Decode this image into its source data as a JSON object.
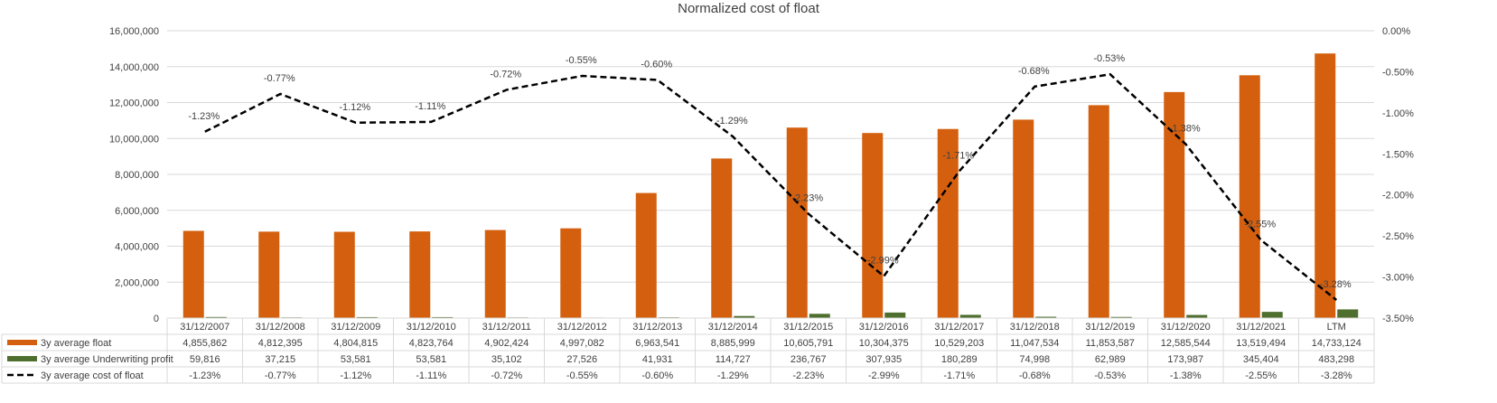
{
  "chart_data": {
    "type": "bar",
    "title": "Normalized cost of float",
    "categories": [
      "31/12/2007",
      "31/12/2008",
      "31/12/2009",
      "31/12/2010",
      "31/12/2011",
      "31/12/2012",
      "31/12/2013",
      "31/12/2014",
      "31/12/2015",
      "31/12/2016",
      "31/12/2017",
      "31/12/2018",
      "31/12/2019",
      "31/12/2020",
      "31/12/2021",
      "LTM"
    ],
    "series": [
      {
        "name": "3y average float",
        "type": "bar",
        "axis": "left",
        "color": "#D4600F",
        "values": [
          4855862,
          4812395,
          4804815,
          4823764,
          4902424,
          4997082,
          6963541,
          8885999,
          10605791,
          10304375,
          10529203,
          11047534,
          11853587,
          12585544,
          13519494,
          14733124
        ],
        "labels": [
          "4,855,862",
          "4,812,395",
          "4,804,815",
          "4,823,764",
          "4,902,424",
          "4,997,082",
          "6,963,541",
          "8,885,999",
          "10,605,791",
          "10,304,375",
          "10,529,203",
          "11,047,534",
          "11,853,587",
          "12,585,544",
          "13,519,494",
          "14,733,124"
        ]
      },
      {
        "name": "3y average Underwriting profit",
        "type": "bar",
        "axis": "left",
        "color": "#4F6F2F",
        "values": [
          59816,
          37215,
          53581,
          53581,
          35102,
          27526,
          41931,
          114727,
          236767,
          307935,
          180289,
          74998,
          62989,
          173987,
          345404,
          483298
        ],
        "labels": [
          "59,816",
          "37,215",
          "53,581",
          "53,581",
          "35,102",
          "27,526",
          "41,931",
          "114,727",
          "236,767",
          "307,935",
          "180,289",
          "74,998",
          "62,989",
          "173,987",
          "345,404",
          "483,298"
        ]
      },
      {
        "name": "3y average cost of float",
        "type": "line",
        "axis": "right",
        "color": "#000000",
        "values": [
          -1.23,
          -0.77,
          -1.12,
          -1.11,
          -0.72,
          -0.55,
          -0.6,
          -1.29,
          -2.23,
          -2.99,
          -1.71,
          -0.68,
          -0.53,
          -1.38,
          -2.55,
          -3.28
        ],
        "labels": [
          "-1.23%",
          "-0.77%",
          "-1.12%",
          "-1.11%",
          "-0.72%",
          "-0.55%",
          "-0.60%",
          "-1.29%",
          "-2.23%",
          "-2.99%",
          "-1.71%",
          "-0.68%",
          "-0.53%",
          "-1.38%",
          "-2.55%",
          "-3.28%"
        ]
      }
    ],
    "y_left": {
      "range": [
        0,
        16000000
      ],
      "ticks": [
        0,
        2000000,
        4000000,
        6000000,
        8000000,
        10000000,
        12000000,
        14000000,
        16000000
      ],
      "tick_labels": [
        "0",
        "2,000,000",
        "4,000,000",
        "6,000,000",
        "8,000,000",
        "10,000,000",
        "12,000,000",
        "14,000,000",
        "16,000,000"
      ]
    },
    "y_right": {
      "range": [
        -3.5,
        0
      ],
      "ticks": [
        0,
        -0.5,
        -1,
        -1.5,
        -2,
        -2.5,
        -3,
        -3.5
      ],
      "tick_labels": [
        "0.00%",
        "-0.50%",
        "-1.00%",
        "-1.50%",
        "-2.00%",
        "-2.50%",
        "-3.00%",
        "-3.50%"
      ]
    },
    "grid": true,
    "legend": "data-table"
  }
}
